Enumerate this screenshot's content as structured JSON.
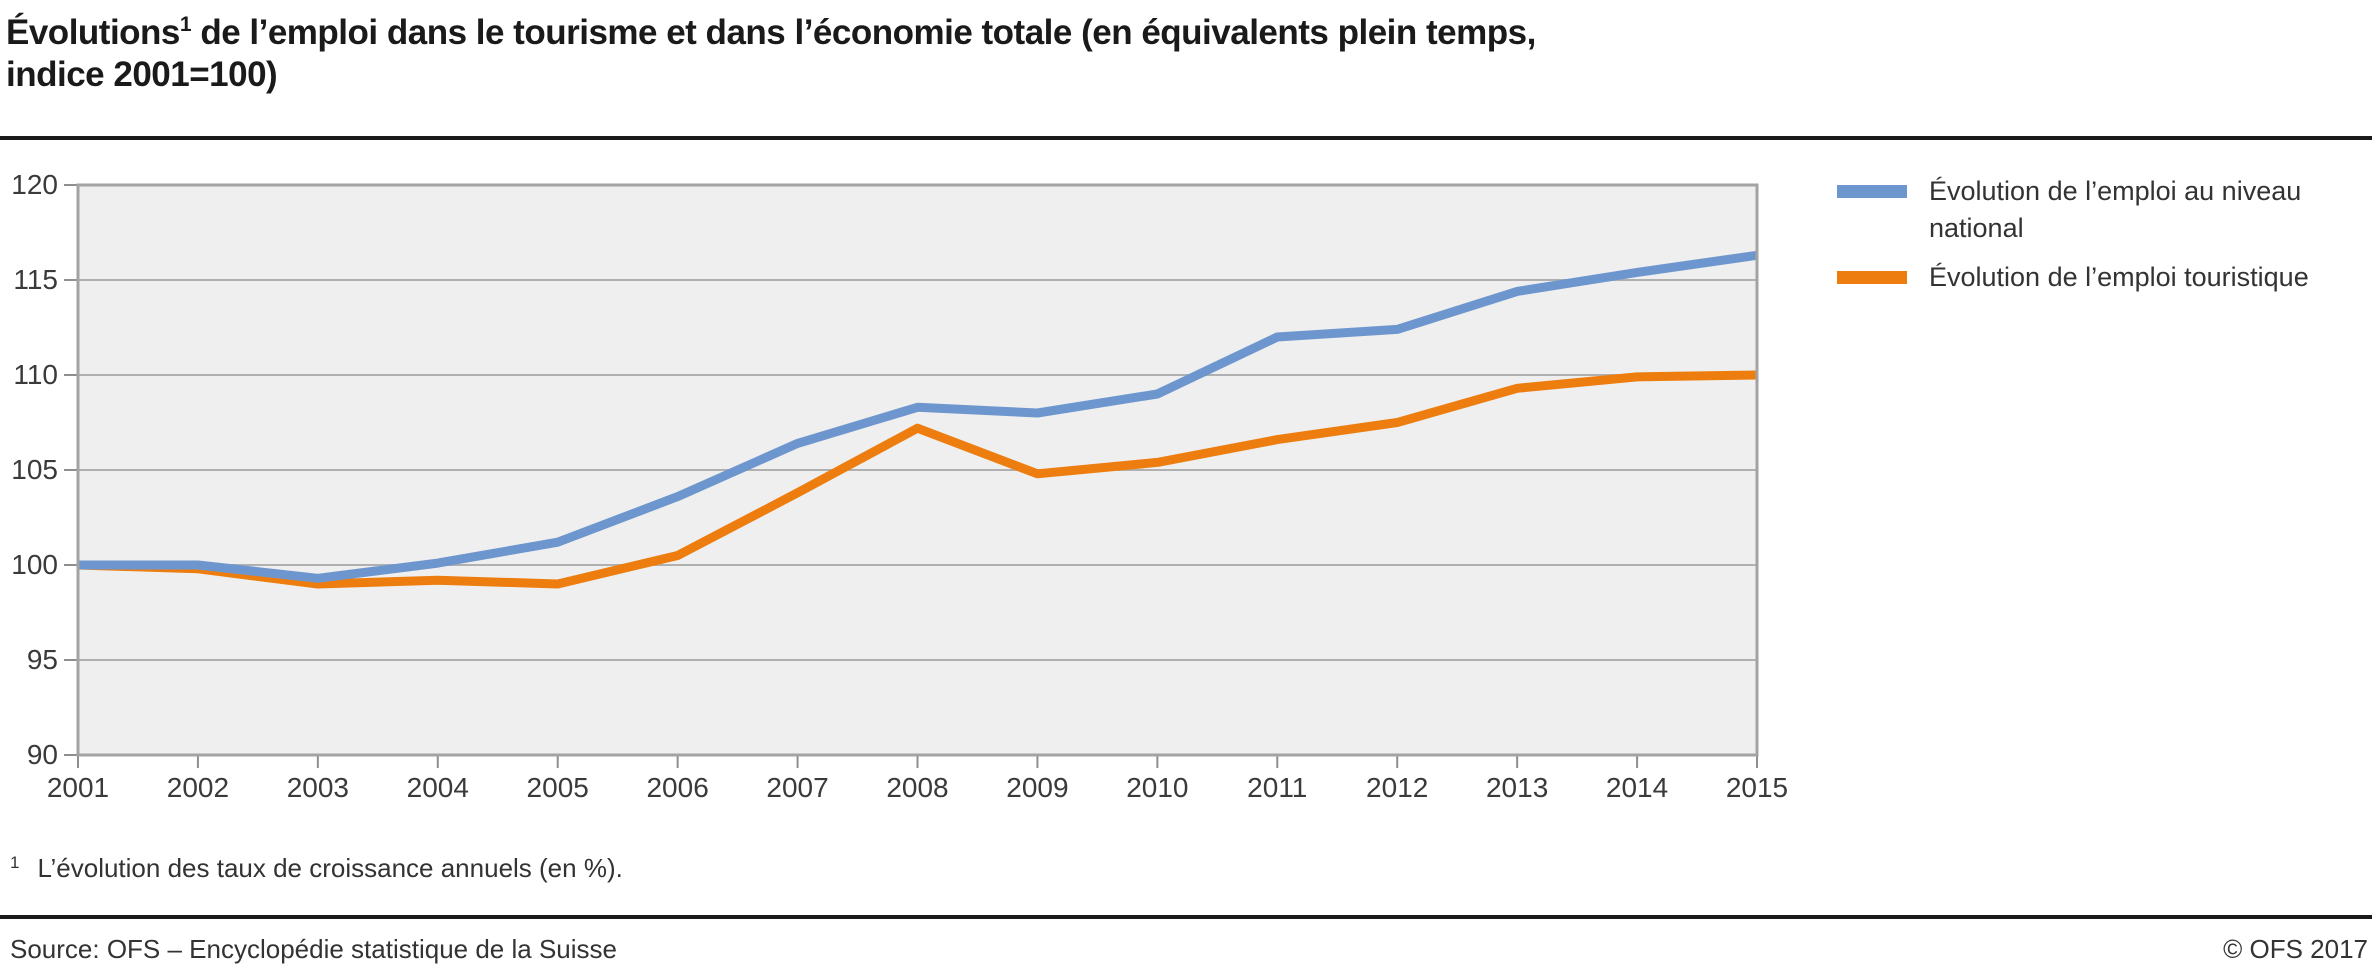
{
  "header": {
    "title_pre": "Évolutions",
    "title_sup": "1",
    "title_line1_rest": " de l’emploi dans le tourisme et dans l’économie totale (en équivalents plein temps,",
    "title_line2": "indice 2001=100)"
  },
  "chart_data": {
    "type": "line",
    "title": "Évolutions de l’emploi dans le tourisme et dans l’économie totale (en équivalents plein temps, indice 2001=100)",
    "categories": [
      "2001",
      "2002",
      "2003",
      "2004",
      "2005",
      "2006",
      "2007",
      "2008",
      "2009",
      "2010",
      "2011",
      "2012",
      "2013",
      "2014",
      "2015"
    ],
    "series": [
      {
        "name": "Évolution de l’emploi au niveau national",
        "legend_lines": [
          "Évolution de l’emploi au niveau",
          "national"
        ],
        "color": "#6e96ce",
        "values": [
          100,
          100,
          99.3,
          100.1,
          101.2,
          103.6,
          106.4,
          108.3,
          108,
          109,
          112,
          112.4,
          114.4,
          115.4,
          116.3
        ]
      },
      {
        "name": "Évolution de l’emploi touristique",
        "legend_lines": [
          "Évolution de l’emploi touristique"
        ],
        "color": "#ed7d0e",
        "values": [
          100,
          99.8,
          99,
          99.2,
          99,
          100.5,
          103.8,
          107.2,
          104.8,
          105.4,
          106.6,
          107.5,
          109.3,
          109.9,
          110
        ]
      }
    ],
    "xlabel": "",
    "ylabel": "",
    "ylim": [
      90,
      120
    ],
    "ytick_step": 5,
    "grid": true,
    "legend_position": "right",
    "plot_bg": "#efefef"
  },
  "footnote": {
    "sup": "1",
    "text": "L’évolution des taux de croissance annuels (en %)."
  },
  "footer": {
    "source": "Source: OFS – Encyclopédie statistique de la Suisse",
    "copyright": "© OFS 2017"
  },
  "colors": {
    "plot_bg": "#efefef",
    "grid": "#b0b0b0",
    "frame": "#a3a3a3",
    "tick": "#8f8f8f",
    "title": "#1a1a1a",
    "national_blue": "#6e96ce",
    "tourism_orange": "#ed7d0e"
  }
}
